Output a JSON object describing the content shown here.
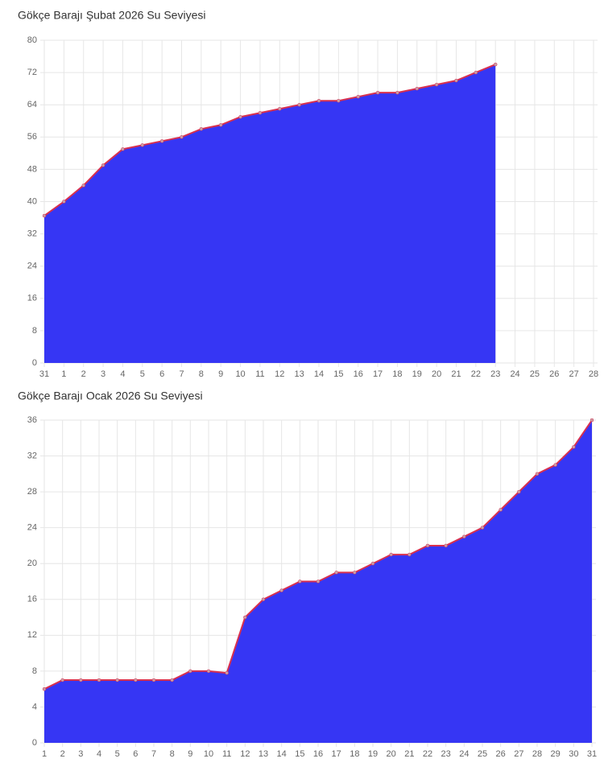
{
  "chart_data": [
    {
      "type": "area",
      "title": "Gökçe Barajı Şubat 2026 Su Seviyesi",
      "categories": [
        "31",
        "1",
        "2",
        "3",
        "4",
        "5",
        "6",
        "7",
        "8",
        "9",
        "10",
        "11",
        "12",
        "13",
        "14",
        "15",
        "16",
        "17",
        "18",
        "19",
        "20",
        "21",
        "22",
        "23",
        "24",
        "25",
        "26",
        "27",
        "28"
      ],
      "series": [
        {
          "color": "#3636f4",
          "line_color": "#d8304f",
          "values": [
            36.5,
            40,
            44,
            49,
            53,
            54,
            55,
            56,
            58,
            59,
            61,
            62,
            63,
            64,
            65,
            65,
            66,
            67,
            67,
            68,
            69,
            70,
            72,
            74,
            null,
            null,
            null,
            null,
            null
          ]
        }
      ],
      "ylim": [
        0,
        80
      ],
      "yticks": [
        0,
        8,
        16,
        24,
        32,
        40,
        48,
        56,
        64,
        72,
        80
      ],
      "grid": true
    },
    {
      "type": "area",
      "title": "Gökçe Barajı Ocak 2026 Su Seviyesi",
      "categories": [
        "1",
        "2",
        "3",
        "4",
        "5",
        "6",
        "7",
        "8",
        "9",
        "10",
        "11",
        "12",
        "13",
        "14",
        "15",
        "16",
        "17",
        "18",
        "19",
        "20",
        "21",
        "22",
        "23",
        "24",
        "25",
        "26",
        "27",
        "28",
        "29",
        "30",
        "31"
      ],
      "series": [
        {
          "color": "#3636f4",
          "line_color": "#d8304f",
          "values": [
            6,
            7,
            7,
            7,
            7,
            7,
            7,
            7,
            8,
            8,
            7.8,
            14,
            16,
            17,
            18,
            18,
            19,
            19,
            20,
            21,
            21,
            22,
            22,
            23,
            24,
            26,
            28,
            30,
            31,
            33,
            36
          ]
        }
      ],
      "ylim": [
        0,
        36
      ],
      "yticks": [
        0,
        4,
        8,
        12,
        16,
        20,
        24,
        28,
        32,
        36
      ],
      "grid": true
    }
  ]
}
